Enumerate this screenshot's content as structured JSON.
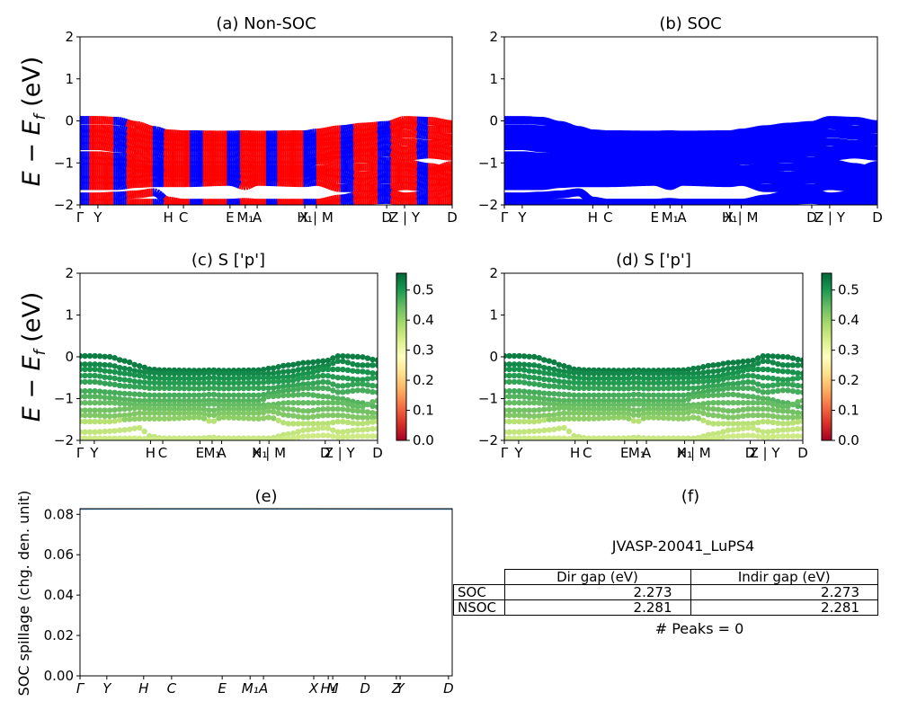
{
  "chart_data": [
    {
      "id": "a",
      "type": "line",
      "title": "(a) Non-SOC",
      "ylabel": "E − E_f (eV)",
      "xlabel": "",
      "ylim": [
        -2,
        2
      ],
      "yticks": [
        -2,
        -1,
        0,
        1,
        2
      ],
      "kpath_ticks": [
        {
          "label": "Γ",
          "x": 0.0
        },
        {
          "label": "Y",
          "x": 0.048
        },
        {
          "label": "H",
          "x": 0.237
        },
        {
          "label": "C",
          "x": 0.278
        },
        {
          "label": "E",
          "x": 0.403
        },
        {
          "label": "M₁",
          "x": 0.444
        },
        {
          "label": "A",
          "x": 0.476
        },
        {
          "label": "H₁",
          "x": 0.604
        },
        {
          "label": "X | M",
          "x": 0.635
        },
        {
          "label": "D",
          "x": 0.824
        },
        {
          "label": "Z | Y",
          "x": 0.872
        },
        {
          "label": "D",
          "x": 1.0
        }
      ],
      "series_colors": [
        "#ff0000",
        "#0000ff"
      ],
      "note": "Valence bands, alternating red/blue segments (spin channels)"
    },
    {
      "id": "b",
      "type": "line",
      "title": "(b) SOC",
      "ylabel": "",
      "ylim": [
        -2,
        2
      ],
      "yticks": [
        -2,
        -1,
        0,
        1,
        2
      ],
      "kpath_ticks": [
        {
          "label": "Γ",
          "x": 0.0
        },
        {
          "label": "Y",
          "x": 0.048
        },
        {
          "label": "H",
          "x": 0.237
        },
        {
          "label": "C",
          "x": 0.278
        },
        {
          "label": "E",
          "x": 0.403
        },
        {
          "label": "M₁",
          "x": 0.444
        },
        {
          "label": "A",
          "x": 0.476
        },
        {
          "label": "H₁",
          "x": 0.604
        },
        {
          "label": "X | M",
          "x": 0.635
        },
        {
          "label": "D",
          "x": 0.824
        },
        {
          "label": "Z | Y",
          "x": 0.872
        },
        {
          "label": "D",
          "x": 1.0
        }
      ],
      "series_colors": [
        "#0000ff"
      ]
    },
    {
      "id": "c",
      "type": "scatter",
      "title": "(c)  S ['p']",
      "ylabel": "E − E_f (eV)",
      "ylim": [
        -2,
        2
      ],
      "yticks": [
        -2,
        -1,
        0,
        1,
        2
      ],
      "colorbar": {
        "cmap": "RdYlGn",
        "min": 0.0,
        "max": 0.556,
        "ticks": [
          "0.0",
          "0.1",
          "0.2",
          "0.3",
          "0.4",
          "0.5"
        ]
      },
      "kpath_ticks": [
        {
          "label": "Γ",
          "x": 0.0
        },
        {
          "label": "Y",
          "x": 0.048
        },
        {
          "label": "H",
          "x": 0.237
        },
        {
          "label": "C",
          "x": 0.278
        },
        {
          "label": "E",
          "x": 0.403
        },
        {
          "label": "M₁",
          "x": 0.444
        },
        {
          "label": "A",
          "x": 0.476
        },
        {
          "label": "H₁",
          "x": 0.604
        },
        {
          "label": "X | M",
          "x": 0.635
        },
        {
          "label": "D",
          "x": 0.824
        },
        {
          "label": "Z | Y",
          "x": 0.872
        },
        {
          "label": "D",
          "x": 1.0
        }
      ]
    },
    {
      "id": "d",
      "type": "scatter",
      "title": "(d) S ['p']",
      "ylabel": "",
      "ylim": [
        -2,
        2
      ],
      "yticks": [
        -2,
        -1,
        0,
        1,
        2
      ],
      "colorbar": {
        "cmap": "RdYlGn",
        "min": 0.0,
        "max": 0.556,
        "ticks": [
          "0.0",
          "0.1",
          "0.2",
          "0.3",
          "0.4",
          "0.5"
        ]
      },
      "kpath_ticks": [
        {
          "label": "Γ",
          "x": 0.0
        },
        {
          "label": "Y",
          "x": 0.048
        },
        {
          "label": "H",
          "x": 0.237
        },
        {
          "label": "C",
          "x": 0.278
        },
        {
          "label": "E",
          "x": 0.403
        },
        {
          "label": "M₁",
          "x": 0.444
        },
        {
          "label": "A",
          "x": 0.476
        },
        {
          "label": "H₁",
          "x": 0.604
        },
        {
          "label": "X | M",
          "x": 0.635
        },
        {
          "label": "D",
          "x": 0.824
        },
        {
          "label": "Z | Y",
          "x": 0.872
        },
        {
          "label": "D",
          "x": 1.0
        }
      ]
    },
    {
      "id": "e",
      "type": "line",
      "title": "(e)",
      "ylabel": "SOC spillage (chg. den. unit)",
      "ylim": [
        0,
        0.0828
      ],
      "yticks": [
        "0.00",
        "0.02",
        "0.04",
        "0.06",
        "0.08"
      ],
      "ytick_values": [
        0,
        0.02,
        0.04,
        0.06,
        0.08
      ],
      "kpath_ticks": [
        {
          "label": "Γ",
          "x": 0.0
        },
        {
          "label": "Y",
          "x": 0.072
        },
        {
          "label": "H",
          "x": 0.171
        },
        {
          "label": "C",
          "x": 0.246
        },
        {
          "label": "E",
          "x": 0.382
        },
        {
          "label": "M₁",
          "x": 0.457
        },
        {
          "label": "A",
          "x": 0.493
        },
        {
          "label": "X",
          "x": 0.628
        },
        {
          "label": "H₁",
          "x": 0.667
        },
        {
          "label": "M",
          "x": 0.679
        },
        {
          "label": "D",
          "x": 0.766
        },
        {
          "label": "Z",
          "x": 0.85
        },
        {
          "label": "Y",
          "x": 0.86
        },
        {
          "label": "D",
          "x": 0.99
        }
      ],
      "series": [
        {
          "name": "spillage",
          "color": "#1f77b4",
          "x": [
            0,
            0.2,
            0.4,
            0.6,
            0.8,
            1.0
          ],
          "values": [
            0.0825,
            0.0826,
            0.0826,
            0.0826,
            0.0825,
            0.0825
          ]
        }
      ]
    }
  ],
  "panel_f": {
    "title": "(f)",
    "material": "JVASP-20041_LuPS4",
    "table": {
      "columns": [
        "Dir gap (eV)",
        "Indir gap (eV)"
      ],
      "rows": [
        {
          "label": "SOC",
          "values": [
            "2.273",
            "2.273"
          ]
        },
        {
          "label": "NSOC",
          "values": [
            "2.281",
            "2.281"
          ]
        }
      ]
    },
    "peaks_text": "# Peaks = 0"
  },
  "bands": {
    "kpoints": [
      0.0,
      0.048,
      0.1,
      0.15,
      0.2,
      0.237,
      0.278,
      0.403,
      0.444,
      0.476,
      0.604,
      0.635,
      0.7,
      0.76,
      0.824,
      0.872,
      0.94,
      1.0
    ],
    "energies": [
      [
        0.02,
        0.02,
        0.0,
        -0.1,
        -0.22,
        -0.3,
        -0.32,
        -0.33,
        -0.32,
        -0.33,
        -0.32,
        -0.28,
        -0.2,
        -0.14,
        -0.1,
        0.02,
        0.0,
        -0.08
      ],
      [
        -0.18,
        -0.18,
        -0.2,
        -0.28,
        -0.35,
        -0.38,
        -0.4,
        -0.4,
        -0.38,
        -0.4,
        -0.4,
        -0.4,
        -0.35,
        -0.28,
        -0.22,
        -0.1,
        -0.2,
        -0.2
      ],
      [
        -0.3,
        -0.3,
        -0.35,
        -0.4,
        -0.45,
        -0.5,
        -0.52,
        -0.52,
        -0.5,
        -0.52,
        -0.5,
        -0.5,
        -0.48,
        -0.4,
        -0.3,
        -0.3,
        -0.35,
        -0.4
      ],
      [
        -0.45,
        -0.45,
        -0.5,
        -0.55,
        -0.6,
        -0.62,
        -0.63,
        -0.63,
        -0.62,
        -0.63,
        -0.62,
        -0.6,
        -0.58,
        -0.5,
        -0.45,
        -0.5,
        -0.55,
        -0.5
      ],
      [
        -0.6,
        -0.6,
        -0.65,
        -0.7,
        -0.72,
        -0.75,
        -0.75,
        -0.76,
        -0.75,
        -0.76,
        -0.75,
        -0.75,
        -0.7,
        -0.65,
        -0.6,
        -0.7,
        -0.65,
        -0.7
      ],
      [
        -0.82,
        -0.82,
        -0.85,
        -0.88,
        -0.9,
        -0.92,
        -0.92,
        -0.92,
        -0.9,
        -0.92,
        -0.92,
        -0.88,
        -0.8,
        -0.75,
        -0.75,
        -0.85,
        -0.8,
        -0.85
      ],
      [
        -0.95,
        -0.95,
        -0.98,
        -1.02,
        -1.05,
        -1.05,
        -1.05,
        -1.05,
        -1.04,
        -1.05,
        -1.05,
        -0.95,
        -0.92,
        -0.9,
        -0.95,
        -1.0,
        -1.1,
        -1.2
      ],
      [
        -1.1,
        -1.1,
        -1.1,
        -1.12,
        -1.15,
        -1.15,
        -1.15,
        -1.15,
        -1.13,
        -1.15,
        -1.15,
        -1.15,
        -1.1,
        -1.1,
        -1.1,
        -1.1,
        -1.2,
        -1.05
      ],
      [
        -1.28,
        -1.28,
        -1.28,
        -1.25,
        -1.22,
        -1.25,
        -1.25,
        -1.25,
        -1.28,
        -1.25,
        -1.25,
        -1.2,
        -1.25,
        -1.3,
        -1.25,
        -1.25,
        -1.3,
        -1.35
      ],
      [
        -1.4,
        -1.4,
        -1.42,
        -1.4,
        -1.35,
        -1.35,
        -1.35,
        -1.35,
        -1.4,
        -1.35,
        -1.35,
        -1.3,
        -1.4,
        -1.45,
        -1.4,
        -1.4,
        -1.45,
        -1.45
      ],
      [
        -1.55,
        -1.55,
        -1.55,
        -1.5,
        -1.48,
        -1.48,
        -1.48,
        -1.45,
        -1.55,
        -1.45,
        -1.48,
        -1.45,
        -1.6,
        -1.6,
        -1.6,
        -1.55,
        -1.6,
        -1.55
      ],
      [
        -1.8,
        -1.8,
        -1.78,
        -1.75,
        -1.7,
        -1.9,
        -1.95,
        -1.95,
        -1.93,
        -1.95,
        -1.95,
        -1.95,
        -1.85,
        -1.75,
        -1.7,
        -1.8,
        -1.75,
        -1.72
      ],
      [
        -1.95,
        -1.95,
        -1.95,
        -1.95,
        -1.95,
        -1.98,
        -1.98,
        -1.98,
        -1.98,
        -1.98,
        -1.98,
        -2.0,
        -1.95,
        -1.9,
        -1.88,
        -1.92,
        -1.9,
        -1.9
      ]
    ]
  }
}
